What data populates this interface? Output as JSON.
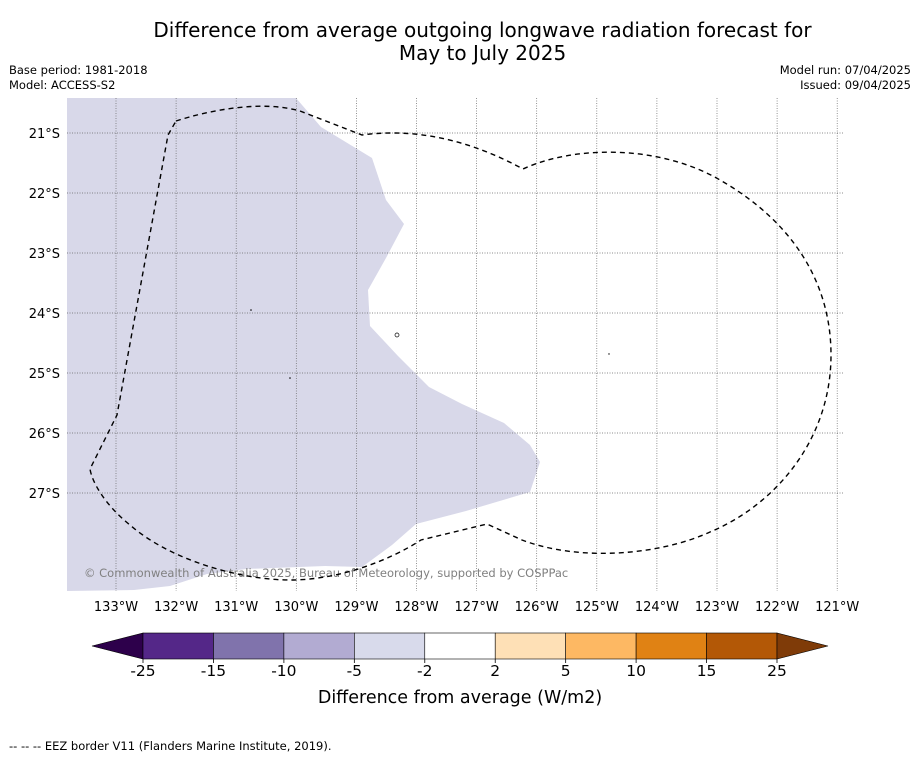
{
  "header": {
    "title": "Difference from average outgoing longwave radiation forecast for\nMay to July 2025",
    "base_period": "Base period: 1981-2018",
    "model": "Model: ACCESS-S2",
    "model_run": "Model run: 07/04/2025",
    "issued": "Issued: 09/04/2025"
  },
  "map": {
    "lat_labels": [
      "21°S",
      "22°S",
      "23°S",
      "24°S",
      "25°S",
      "26°S",
      "27°S"
    ],
    "lon_labels": [
      "133°W",
      "132°W",
      "131°W",
      "130°W",
      "129°W",
      "128°W",
      "127°W",
      "126°W",
      "125°W",
      "124°W",
      "123°W",
      "122°W",
      "121°W"
    ],
    "copyright": "© Commonwealth of Australia 2025, Bureau of Meteorology, supported by COSPPac",
    "anomaly_fill_color": "#d8d8e9",
    "eez_line_color": "#000000"
  },
  "legend": {
    "title": "Difference from average (W/m2)",
    "ticks": [
      "-25",
      "-15",
      "-10",
      "-5",
      "-2",
      "2",
      "5",
      "10",
      "15",
      "25"
    ],
    "colors": [
      "#2d004b",
      "#542788",
      "#8073ac",
      "#b2abd2",
      "#d8daeb",
      "#ffffff",
      "#fee0b6",
      "#fdb863",
      "#e08214",
      "#b35806",
      "#7f3b08"
    ]
  },
  "footer": {
    "note": "--  --  -- EEZ border V11 (Flanders Marine Institute, 2019)."
  }
}
